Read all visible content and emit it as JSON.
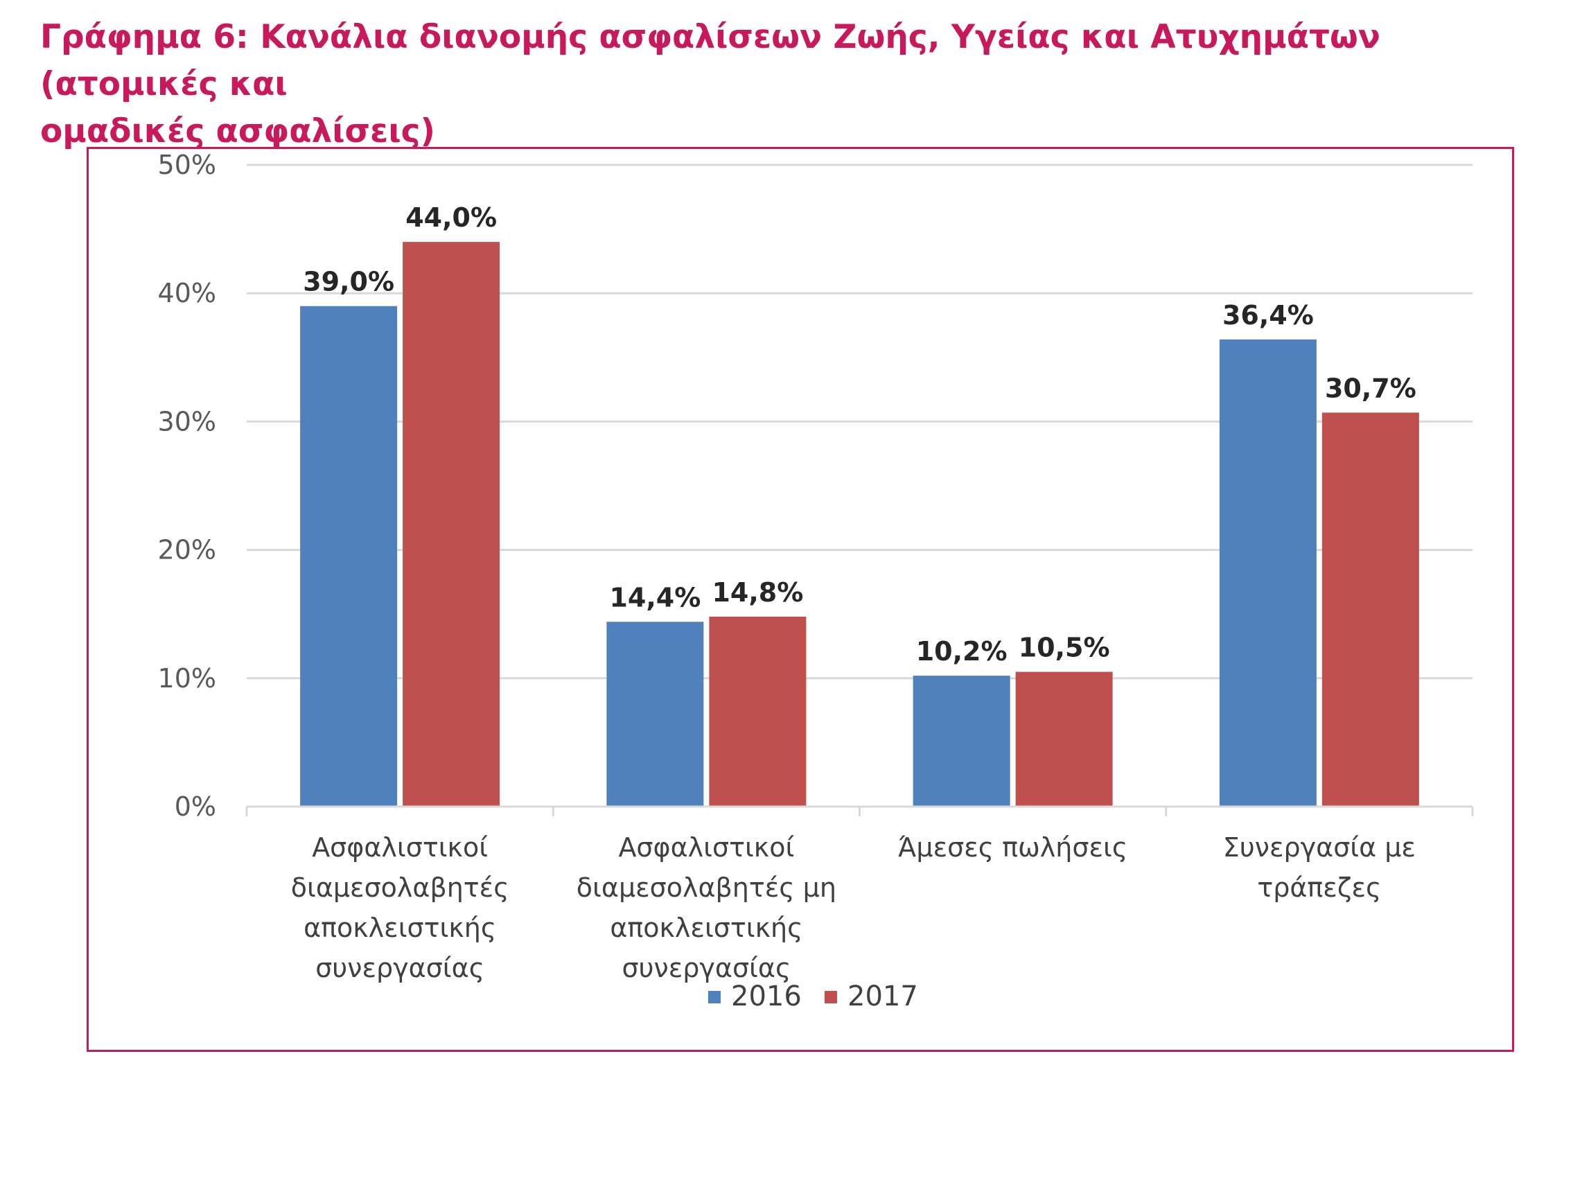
{
  "title_line1": "Γράφημα 6: Κανάλια διανομής ασφαλίσεων Ζωής, Υγείας και Ατυχημάτων (ατομικές και",
  "title_line2": "ομαδικές ασφαλίσεις)",
  "colors": {
    "series_2016": "#4f81bd",
    "series_2017": "#c0504d",
    "frame": "#c8195c",
    "title": "#c8195c"
  },
  "chart_data": {
    "type": "bar",
    "categories": [
      [
        "Ασφαλιστικοί",
        "διαμεσολαβητές",
        "αποκλειστικής",
        "συνεργασίας"
      ],
      [
        "Ασφαλιστικοί",
        "διαμεσολαβητές μη",
        "αποκλειστικής",
        "συνεργασίας"
      ],
      [
        "Άμεσες πωλήσεις"
      ],
      [
        "Συνεργασία με",
        "τράπεζες"
      ]
    ],
    "series": [
      {
        "name": "2016",
        "values": [
          39.0,
          14.4,
          10.2,
          36.4
        ],
        "labels": [
          "39,0%",
          "14,4%",
          "10,2%",
          "36,4%"
        ]
      },
      {
        "name": "2017",
        "values": [
          44.0,
          14.8,
          10.5,
          30.7
        ],
        "labels": [
          "44,0%",
          "14,8%",
          "10,5%",
          "30,7%"
        ]
      }
    ],
    "y_ticks": [
      "0%",
      "10%",
      "20%",
      "30%",
      "40%",
      "50%"
    ],
    "ylim": [
      0,
      50
    ],
    "grid": true,
    "legend": "bottom"
  }
}
